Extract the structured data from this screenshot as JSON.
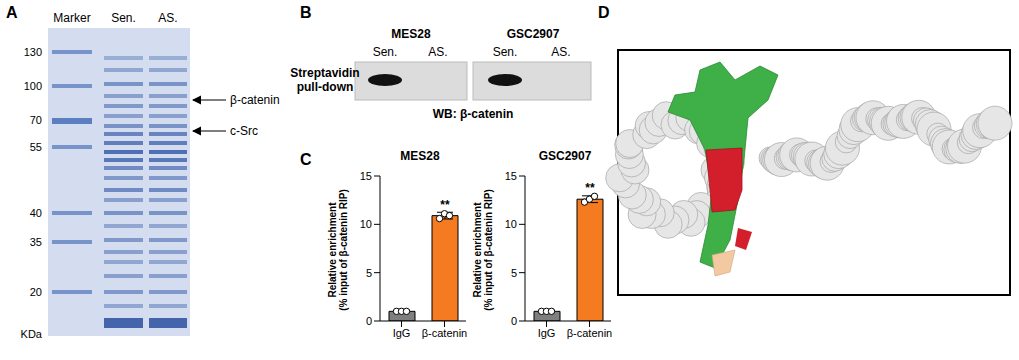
{
  "panel_labels": [
    "A",
    "B",
    "C",
    "D"
  ],
  "gel": {
    "lanes": [
      "Marker",
      "Sen.",
      "AS."
    ],
    "marker_labels": [
      130,
      100,
      70,
      55,
      40,
      35,
      20
    ],
    "unit_label": "KDa",
    "arrows": [
      "β-catenin",
      "c-Src"
    ]
  },
  "blot": {
    "cell_lines": [
      "MES28",
      "GSC2907"
    ],
    "lanes": [
      "Sen.",
      "AS."
    ],
    "band_lanes": [
      "Sen."
    ],
    "row_label": [
      "Streptavidin",
      "pull-down"
    ],
    "caption": "WB: β-catenin"
  },
  "chart_data": [
    {
      "type": "bar",
      "title": "MES28",
      "categories": [
        "IgG",
        "β-catenin"
      ],
      "values": [
        1,
        10.9
      ],
      "errors": [
        0.12,
        0.35
      ],
      "points": [
        [
          1,
          1,
          1
        ],
        [
          10.6,
          11.1,
          10.9
        ]
      ],
      "colors": [
        "#7f7f7f",
        "#f47b20"
      ],
      "ylim": [
        0,
        15
      ],
      "yticks": [
        0,
        5,
        10,
        15
      ],
      "ylabel": [
        "Relative enrichment",
        "(% input of β-catenin RIP)"
      ],
      "significance": [
        {
          "category": "β-catenin",
          "label": "**"
        }
      ]
    },
    {
      "type": "bar",
      "title": "GSC2907",
      "categories": [
        "IgG",
        "β-catenin"
      ],
      "values": [
        1,
        12.6
      ],
      "errors": [
        0.1,
        0.35
      ],
      "points": [
        [
          1,
          1,
          1
        ],
        [
          12.3,
          12.6,
          12.9
        ]
      ],
      "colors": [
        "#7f7f7f",
        "#f47b20"
      ],
      "ylim": [
        0,
        15
      ],
      "yticks": [
        0,
        5,
        10,
        15
      ],
      "ylabel": [
        "Relative enrichment",
        "(% input of β-catenin RIP)"
      ],
      "significance": [
        {
          "category": "β-catenin",
          "label": "**"
        }
      ]
    }
  ]
}
